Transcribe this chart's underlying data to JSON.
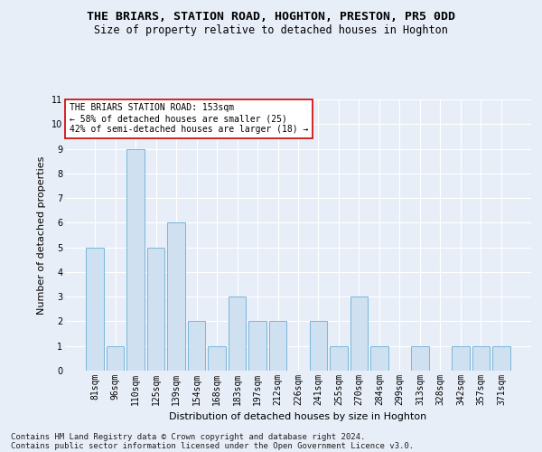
{
  "title1": "THE BRIARS, STATION ROAD, HOGHTON, PRESTON, PR5 0DD",
  "title2": "Size of property relative to detached houses in Hoghton",
  "xlabel": "Distribution of detached houses by size in Hoghton",
  "ylabel": "Number of detached properties",
  "categories": [
    "81sqm",
    "96sqm",
    "110sqm",
    "125sqm",
    "139sqm",
    "154sqm",
    "168sqm",
    "183sqm",
    "197sqm",
    "212sqm",
    "226sqm",
    "241sqm",
    "255sqm",
    "270sqm",
    "284sqm",
    "299sqm",
    "313sqm",
    "328sqm",
    "342sqm",
    "357sqm",
    "371sqm"
  ],
  "values": [
    5,
    1,
    9,
    5,
    6,
    2,
    1,
    3,
    2,
    2,
    0,
    2,
    1,
    3,
    1,
    0,
    1,
    0,
    1,
    1,
    1
  ],
  "bar_color": "#cfe0f0",
  "bar_edge_color": "#6aaed6",
  "annotation_text": "THE BRIARS STATION ROAD: 153sqm\n← 58% of detached houses are smaller (25)\n42% of semi-detached houses are larger (18) →",
  "annotation_box_facecolor": "white",
  "annotation_box_edgecolor": "#cc0000",
  "ylim": [
    0,
    11
  ],
  "yticks": [
    0,
    1,
    2,
    3,
    4,
    5,
    6,
    7,
    8,
    9,
    10,
    11
  ],
  "footer1": "Contains HM Land Registry data © Crown copyright and database right 2024.",
  "footer2": "Contains public sector information licensed under the Open Government Licence v3.0.",
  "bg_color": "#e8eef8",
  "plot_bg_color": "#e8eef8",
  "grid_color": "#ffffff",
  "title1_fontsize": 9.5,
  "title2_fontsize": 8.5,
  "xlabel_fontsize": 8,
  "ylabel_fontsize": 8,
  "tick_fontsize": 7,
  "annotation_fontsize": 7,
  "footer_fontsize": 6.5
}
